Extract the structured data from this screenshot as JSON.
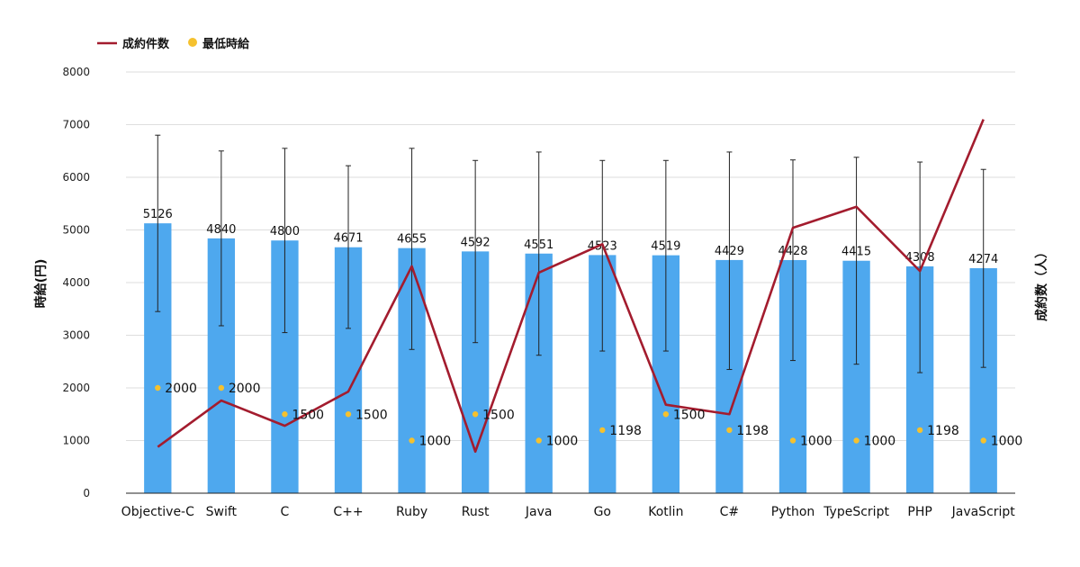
{
  "chart_data": {
    "type": "bar",
    "categories": [
      "Objective-C",
      "Swift",
      "C",
      "C++",
      "Ruby",
      "Rust",
      "Java",
      "Go",
      "Kotlin",
      "C#",
      "Python",
      "TypeScript",
      "PHP",
      "JavaScript"
    ],
    "y_left_label": "時給(円)",
    "y_right_label": "成約数（人）",
    "ylim": [
      0,
      8000
    ],
    "y_ticks": [
      0,
      1000,
      2000,
      3000,
      4000,
      5000,
      6000,
      7000,
      8000
    ],
    "grid": true,
    "legend_position": "top-left",
    "legend": {
      "line_label": "成約件数",
      "dot_label": "最低時給"
    },
    "series": [
      {
        "kind": "bar",
        "values": [
          5126,
          4840,
          4800,
          4671,
          4655,
          4592,
          4551,
          4523,
          4519,
          4429,
          4428,
          4415,
          4308,
          4274
        ],
        "error_high": [
          6800,
          6500,
          6550,
          6220,
          6550,
          6320,
          6480,
          6320,
          6320,
          6480,
          6330,
          6380,
          6290,
          6150
        ],
        "error_low": [
          3450,
          3180,
          3050,
          3130,
          2730,
          2860,
          2620,
          2700,
          2700,
          2350,
          2520,
          2450,
          2290,
          2390
        ],
        "color": "#4ea8ee"
      },
      {
        "kind": "line",
        "name": "成約件数",
        "values": [
          880,
          1760,
          1280,
          1930,
          4310,
          790,
          4190,
          4730,
          1680,
          1500,
          5040,
          5440,
          4220,
          7100
        ],
        "color": "#a31c2e"
      },
      {
        "kind": "dot",
        "name": "最低時給",
        "values": [
          2000,
          2000,
          1500,
          1500,
          1000,
          1500,
          1000,
          1198,
          1500,
          1198,
          1000,
          1000,
          1198,
          1000
        ],
        "color": "#f5c12e"
      }
    ]
  }
}
